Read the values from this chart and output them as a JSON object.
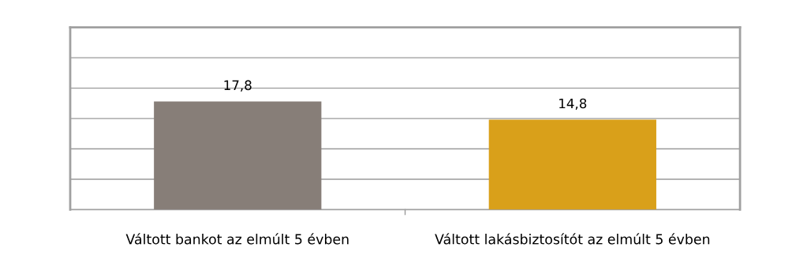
{
  "chart_data": {
    "type": "bar",
    "categories": [
      "Váltott bankot az elmúlt 5 évben",
      "Váltott lakásbiztosítót az elmúlt 5 évben"
    ],
    "values": [
      17.8,
      14.8
    ],
    "colors": [
      "#877e78",
      "#d9a01a"
    ],
    "value_labels": [
      "17,8",
      "14,8"
    ],
    "ylim": [
      0,
      30
    ],
    "yticks": [
      {
        "value": 0,
        "label": null
      },
      {
        "value": 5,
        "label": null
      },
      {
        "value": 10,
        "label": null
      },
      {
        "value": 15,
        "label": null
      },
      {
        "value": 20,
        "label": null
      },
      {
        "value": 25,
        "label": null
      },
      {
        "value": 30,
        "label": null
      }
    ],
    "tick_labels": "x",
    "grid": "y"
  }
}
